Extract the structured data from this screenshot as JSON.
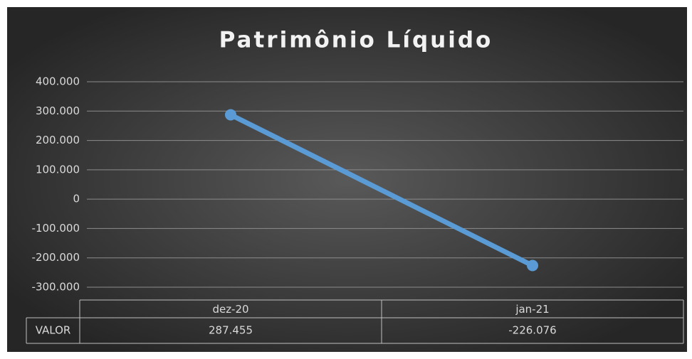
{
  "chart_data": {
    "type": "line",
    "title": "Patrimônio Líquido",
    "categories": [
      "dez-20",
      "jan-21"
    ],
    "series": [
      {
        "name": "VALOR",
        "color": "#5b9bd5",
        "values": [
          287455,
          -226076
        ],
        "value_labels": [
          "287.455",
          "-226.076"
        ]
      }
    ],
    "ylim": [
      -300000,
      400000
    ],
    "yticks": [
      {
        "value": -300000,
        "label": "-300.000"
      },
      {
        "value": -200000,
        "label": "-200.000"
      },
      {
        "value": -100000,
        "label": "-100.000"
      },
      0,
      {
        "value": 100000,
        "label": "100.000"
      },
      {
        "value": 200000,
        "label": "200.000"
      },
      {
        "value": 300000,
        "label": "300.000"
      },
      {
        "value": 400000,
        "label": "400.000"
      }
    ],
    "grid": true
  }
}
